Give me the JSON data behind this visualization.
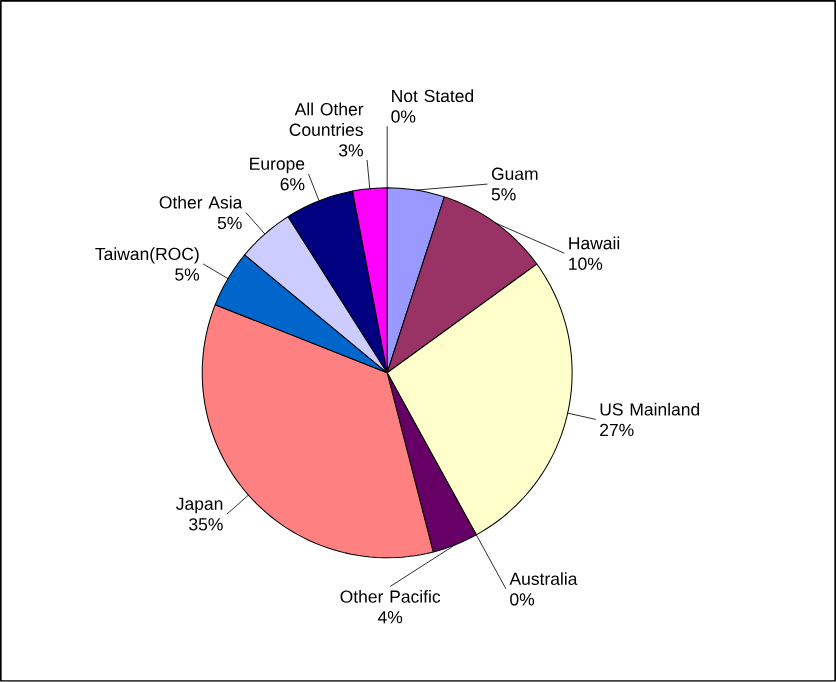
{
  "chart_data": {
    "type": "pie",
    "categories": [
      "Not Stated",
      "Guam",
      "Hawaii",
      "US Mainland",
      "Australia",
      "Other Pacific",
      "Japan",
      "Taiwan(ROC)",
      "Other Asia",
      "Europe",
      "All Other Countries"
    ],
    "values": [
      0,
      5,
      10,
      27,
      0,
      4,
      35,
      5,
      5,
      6,
      3
    ],
    "value_labels": [
      "0%",
      "5%",
      "10%",
      "27%",
      "0%",
      "4%",
      "35%",
      "5%",
      "5%",
      "6%",
      "3%"
    ],
    "colors": [
      "#ffff00",
      "#9999ff",
      "#993366",
      "#ffffcc",
      "#ccffff",
      "#660066",
      "#ff8080",
      "#0066cc",
      "#ccccff",
      "#000080",
      "#ff00ff"
    ],
    "legend": false
  }
}
